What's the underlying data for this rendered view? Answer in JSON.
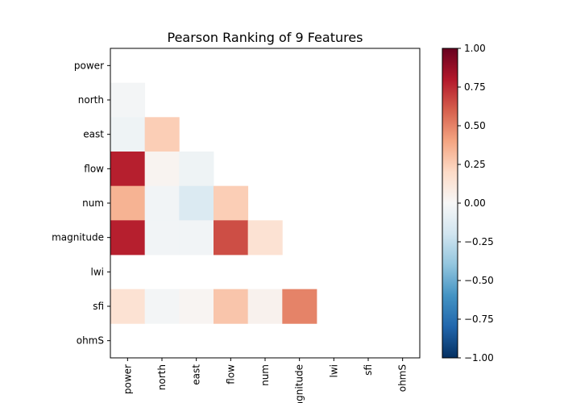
{
  "chart_data": {
    "type": "heatmap",
    "title": "Pearson Ranking of 9 Features",
    "features": [
      "power",
      "north",
      "east",
      "flow",
      "num",
      "magnitude",
      "lwi",
      "sfi",
      "ohmS"
    ],
    "x_tick_labels": [
      "power",
      "north",
      "east",
      "flow",
      "num",
      "magnitude",
      "lwi",
      "sfi",
      "ohmS"
    ],
    "y_tick_labels": [
      "power",
      "north",
      "east",
      "flow",
      "num",
      "magnitude",
      "lwi",
      "sfi",
      "ohmS"
    ],
    "matrix": [
      [
        null,
        null,
        null,
        null,
        null,
        null,
        null,
        null,
        null
      ],
      [
        -0.02,
        null,
        null,
        null,
        null,
        null,
        null,
        null,
        null
      ],
      [
        -0.05,
        0.25,
        null,
        null,
        null,
        null,
        null,
        null,
        null
      ],
      [
        0.78,
        0.03,
        -0.05,
        null,
        null,
        null,
        null,
        null,
        null
      ],
      [
        0.35,
        -0.03,
        -0.15,
        0.25,
        null,
        null,
        null,
        null,
        null
      ],
      [
        0.78,
        -0.03,
        -0.03,
        0.65,
        0.15,
        null,
        null,
        null,
        null
      ],
      [
        null,
        null,
        null,
        null,
        null,
        null,
        null,
        null,
        null
      ],
      [
        0.15,
        -0.02,
        0.02,
        0.28,
        0.04,
        0.5,
        null,
        null,
        null
      ],
      [
        null,
        null,
        null,
        null,
        null,
        null,
        null,
        null,
        null
      ]
    ],
    "value_range": [
      -1.0,
      1.0
    ],
    "colormap": "RdBu_r",
    "colorbar": {
      "ticks": [
        -1.0,
        -0.75,
        -0.5,
        -0.25,
        0.0,
        0.25,
        0.5,
        0.75,
        1.0
      ],
      "tick_labels": [
        "−1.00",
        "−0.75",
        "−0.50",
        "−0.25",
        "0.00",
        "0.25",
        "0.50",
        "0.75",
        "1.00"
      ]
    },
    "mask": "upper-triangle-and-diagonal",
    "grid": false
  }
}
